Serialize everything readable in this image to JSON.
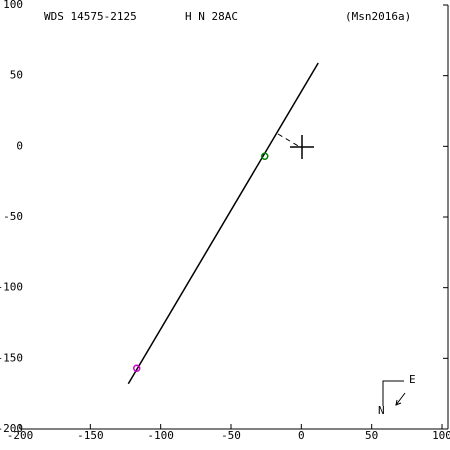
{
  "chart_data": {
    "type": "scatter",
    "title": "WDS 14575-2125",
    "subtitle": "H N  28AC",
    "reference": "(Msn2016a)",
    "compass": {
      "north": "N",
      "east": "E"
    },
    "xlim": [
      -200,
      100
    ],
    "ylim": [
      -200,
      100
    ],
    "xticks": [
      -200,
      -150,
      -100,
      -50,
      0,
      50,
      100
    ],
    "yticks": [
      -200,
      -150,
      -100,
      -50,
      0,
      50,
      100
    ],
    "series": [
      {
        "mode": "line",
        "color": "#000000",
        "x": [
          -123,
          12
        ],
        "values": [
          -168,
          59
        ]
      },
      {
        "mode": "points",
        "color": "#cc00cc",
        "x": [
          -117
        ],
        "values": [
          -157
        ]
      },
      {
        "mode": "points",
        "color": "#008000",
        "x": [
          -26
        ],
        "values": [
          -7
        ]
      }
    ]
  }
}
